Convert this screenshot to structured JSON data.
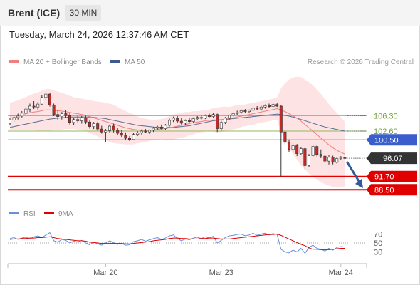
{
  "header": {
    "title": "Brent (ICE)",
    "timeframe": "30 MIN",
    "datetime": "Tuesday, March 24, 2026 12:37:46 AM CET"
  },
  "legend": {
    "bb_label": "MA 20 + Bollinger Bands",
    "ma50_label": "MA 50",
    "copyright": "Research © 2026 Trading Central",
    "rsi_label": "RSI",
    "ma9_label": "9MA"
  },
  "colors": {
    "bands": "#fde0e0",
    "ma20": "#f08080",
    "ma50": "#5a6e96",
    "candle_up": "#ffffff",
    "candle_down": "#c62828",
    "level_green": "#8fbc5a",
    "level_blue": "#3a5fcd",
    "level_red": "#e00000",
    "rsi": "#6a8fd8",
    "rsi_ma": "#e00000",
    "arrow": "#2f5b9a"
  },
  "chart_data": {
    "type": "candlestick",
    "x_ticks": [
      "Mar 20",
      "Mar 23",
      "Mar 24"
    ],
    "y_range": [
      86.5,
      117
    ],
    "levels": [
      {
        "value": 106.3,
        "label": "106.30",
        "kind": "resistance"
      },
      {
        "value": 102.6,
        "label": "102.60",
        "kind": "resistance"
      },
      {
        "value": 100.5,
        "label": "100.50",
        "kind": "pivot"
      },
      {
        "value": 91.7,
        "label": "91.70",
        "kind": "support"
      },
      {
        "value": 88.5,
        "label": "88.50",
        "kind": "support"
      }
    ],
    "last_price": {
      "value": 96.07,
      "label": "96.07"
    },
    "candles": [
      [
        104.5,
        105.8,
        104.0,
        105.3
      ],
      [
        105.3,
        106.3,
        104.8,
        105.9
      ],
      [
        105.9,
        106.8,
        105.4,
        106.2
      ],
      [
        106.2,
        107.4,
        105.9,
        106.9
      ],
      [
        106.9,
        108.3,
        106.6,
        107.9
      ],
      [
        107.9,
        109.2,
        107.2,
        108.6
      ],
      [
        108.6,
        109.8,
        107.9,
        108.4
      ],
      [
        108.4,
        109.6,
        107.7,
        109.1
      ],
      [
        109.1,
        111.2,
        108.8,
        110.7
      ],
      [
        110.7,
        111.9,
        110.1,
        111.5
      ],
      [
        111.5,
        111.8,
        108.5,
        108.9
      ],
      [
        108.9,
        109.2,
        106.2,
        106.6
      ],
      [
        106.6,
        107.6,
        105.2,
        106.1
      ],
      [
        106.1,
        107.2,
        105.4,
        106.8
      ],
      [
        106.8,
        107.6,
        105.9,
        106.3
      ],
      [
        106.3,
        106.9,
        104.2,
        104.7
      ],
      [
        104.7,
        105.8,
        104.1,
        105.4
      ],
      [
        105.4,
        106.3,
        104.7,
        105.1
      ],
      [
        105.1,
        106.2,
        104.4,
        105.8
      ],
      [
        105.8,
        106.3,
        104.3,
        104.8
      ],
      [
        104.8,
        105.4,
        103.2,
        103.7
      ],
      [
        103.7,
        104.8,
        103.1,
        104.4
      ],
      [
        104.4,
        104.9,
        102.7,
        103.1
      ],
      [
        103.1,
        103.9,
        102.0,
        102.4
      ],
      [
        102.4,
        103.1,
        99.9,
        102.7
      ],
      [
        102.7,
        104.2,
        102.2,
        103.8
      ],
      [
        103.8,
        104.4,
        102.3,
        102.8
      ],
      [
        102.8,
        103.3,
        101.6,
        102.1
      ],
      [
        102.1,
        102.8,
        101.2,
        101.6
      ],
      [
        101.6,
        102.3,
        100.4,
        100.9
      ],
      [
        100.9,
        101.4,
        100.2,
        100.6
      ],
      [
        100.6,
        102.1,
        100.4,
        101.8
      ],
      [
        101.8,
        102.6,
        101.4,
        102.2
      ],
      [
        102.2,
        103.0,
        101.8,
        102.6
      ],
      [
        102.6,
        103.1,
        102.1,
        102.4
      ],
      [
        102.4,
        103.0,
        101.9,
        102.8
      ],
      [
        102.8,
        103.6,
        102.4,
        103.3
      ],
      [
        103.3,
        103.9,
        102.9,
        103.6
      ],
      [
        103.6,
        104.2,
        103.0,
        103.2
      ],
      [
        103.2,
        104.3,
        102.8,
        104.0
      ],
      [
        104.0,
        105.6,
        103.7,
        105.2
      ],
      [
        105.2,
        106.1,
        104.8,
        105.7
      ],
      [
        105.7,
        106.2,
        104.6,
        105.0
      ],
      [
        105.0,
        105.7,
        104.2,
        104.5
      ],
      [
        104.5,
        105.4,
        104.1,
        105.1
      ],
      [
        105.1,
        105.8,
        104.7,
        104.9
      ],
      [
        104.9,
        105.9,
        104.6,
        105.6
      ],
      [
        105.6,
        106.2,
        105.2,
        105.9
      ],
      [
        105.9,
        106.4,
        105.4,
        105.7
      ],
      [
        105.7,
        106.6,
        105.5,
        106.3
      ],
      [
        106.3,
        106.8,
        105.9,
        106.1
      ],
      [
        106.1,
        106.9,
        105.8,
        106.6
      ],
      [
        106.6,
        106.8,
        102.4,
        103.2
      ],
      [
        103.2,
        105.1,
        102.6,
        104.7
      ],
      [
        104.7,
        106.0,
        104.3,
        105.7
      ],
      [
        105.7,
        106.6,
        105.3,
        106.4
      ],
      [
        106.4,
        107.1,
        106.0,
        106.8
      ],
      [
        106.8,
        107.5,
        106.4,
        107.2
      ],
      [
        107.2,
        107.8,
        106.8,
        107.5
      ],
      [
        107.5,
        107.9,
        106.9,
        107.3
      ],
      [
        107.3,
        107.8,
        106.9,
        107.6
      ],
      [
        107.6,
        108.4,
        107.3,
        108.1
      ],
      [
        108.1,
        108.6,
        107.6,
        107.9
      ],
      [
        107.9,
        108.7,
        107.5,
        108.4
      ],
      [
        108.4,
        109.0,
        108.0,
        108.7
      ],
      [
        108.7,
        109.2,
        108.2,
        108.5
      ],
      [
        108.5,
        109.3,
        108.1,
        109.0
      ],
      [
        109.0,
        109.4,
        108.4,
        108.6
      ],
      [
        108.6,
        108.9,
        91.7,
        102.4
      ],
      [
        102.4,
        102.9,
        99.3,
        99.9
      ],
      [
        99.9,
        100.6,
        97.6,
        98.2
      ],
      [
        98.2,
        99.6,
        97.4,
        99.1
      ],
      [
        99.1,
        99.5,
        96.6,
        97.2
      ],
      [
        97.2,
        98.8,
        96.9,
        98.4
      ],
      [
        98.4,
        98.6,
        93.2,
        94.3
      ],
      [
        94.3,
        97.1,
        93.9,
        96.7
      ],
      [
        96.7,
        99.4,
        96.3,
        98.9
      ],
      [
        98.9,
        99.2,
        96.5,
        97.0
      ],
      [
        97.0,
        98.2,
        96.1,
        96.6
      ],
      [
        96.6,
        96.9,
        94.9,
        95.4
      ],
      [
        95.4,
        96.8,
        94.6,
        96.3
      ],
      [
        96.3,
        96.7,
        94.6,
        95.1
      ],
      [
        95.1,
        96.4,
        94.8,
        96.0
      ],
      [
        96.0,
        96.6,
        95.6,
        96.2
      ],
      [
        96.2,
        96.5,
        95.8,
        96.07
      ]
    ],
    "ma20": [
      106.2,
      106.3,
      106.4,
      106.6,
      106.8,
      107.0,
      107.2,
      107.3,
      107.5,
      107.7,
      107.7,
      107.6,
      107.5,
      107.4,
      107.3,
      107.1,
      106.9,
      106.8,
      106.6,
      106.4,
      106.1,
      105.8,
      105.5,
      105.2,
      104.9,
      104.6,
      104.3,
      104.0,
      103.7,
      103.4,
      103.2,
      103.0,
      102.9,
      102.8,
      102.8,
      102.8,
      102.9,
      103.0,
      103.1,
      103.2,
      103.4,
      103.6,
      103.8,
      104.0,
      104.2,
      104.4,
      104.6,
      104.8,
      104.9,
      105.1,
      105.2,
      105.3,
      105.3,
      105.4,
      105.5,
      105.6,
      105.8,
      106.0,
      106.2,
      106.4,
      106.6,
      106.8,
      107.0,
      107.2,
      107.4,
      107.6,
      107.8,
      108.0,
      107.7,
      107.3,
      106.8,
      106.3,
      105.7,
      105.0,
      104.2,
      103.4,
      102.6,
      101.8,
      100.9,
      100.1,
      99.3,
      98.6,
      98.0,
      97.5,
      97.1
    ],
    "ma50": [
      103.5,
      103.7,
      103.9,
      104.1,
      104.3,
      104.5,
      104.7,
      104.9,
      105.1,
      105.3,
      105.5,
      105.6,
      105.7,
      105.8,
      105.9,
      106.0,
      106.0,
      106.0,
      106.0,
      106.0,
      106.0,
      105.9,
      105.8,
      105.7,
      105.6,
      105.4,
      105.2,
      105.0,
      104.8,
      104.6,
      104.4,
      104.2,
      104.0,
      103.9,
      103.8,
      103.7,
      103.6,
      103.5,
      103.5,
      103.5,
      103.5,
      103.5,
      103.6,
      103.7,
      103.8,
      103.9,
      104.1,
      104.3,
      104.5,
      104.7,
      104.9,
      105.1,
      105.2,
      105.3,
      105.4,
      105.5,
      105.6,
      105.7,
      105.8,
      105.9,
      106.0,
      106.1,
      106.2,
      106.3,
      106.4,
      106.5,
      106.6,
      106.7,
      106.6,
      106.4,
      106.2,
      106.0,
      105.7,
      105.4,
      105.1,
      104.8,
      104.5,
      104.2,
      103.9,
      103.6,
      103.4,
      103.2,
      103.0,
      102.8,
      102.6
    ],
    "bb_std": [
      1.6,
      1.7,
      1.8,
      1.9,
      2.0,
      2.1,
      2.2,
      2.3,
      2.4,
      2.5,
      2.5,
      2.4,
      2.3,
      2.2,
      2.1,
      2.0,
      1.9,
      1.9,
      1.9,
      1.9,
      2.0,
      2.0,
      2.1,
      2.2,
      2.2,
      2.3,
      2.3,
      2.2,
      2.1,
      2.0,
      1.9,
      1.8,
      1.6,
      1.5,
      1.4,
      1.3,
      1.2,
      1.2,
      1.2,
      1.3,
      1.4,
      1.5,
      1.5,
      1.5,
      1.5,
      1.4,
      1.4,
      1.3,
      1.3,
      1.3,
      1.3,
      1.4,
      1.5,
      1.5,
      1.5,
      1.4,
      1.4,
      1.4,
      1.3,
      1.3,
      1.3,
      1.3,
      1.3,
      1.3,
      1.3,
      1.3,
      1.3,
      1.3,
      2.6,
      3.4,
      4.1,
      4.6,
      5.0,
      5.3,
      5.4,
      5.5,
      5.5,
      5.4,
      5.3,
      5.1,
      4.9,
      4.7,
      4.5,
      4.2,
      3.9
    ],
    "rsi": {
      "ticks": [
        30,
        50,
        70
      ],
      "range": [
        10,
        90
      ],
      "values": [
        60,
        62,
        58,
        61,
        63,
        59,
        64,
        66,
        62,
        68,
        73,
        55,
        52,
        58,
        56,
        50,
        54,
        52,
        56,
        50,
        46,
        52,
        48,
        45,
        50,
        55,
        51,
        47,
        49,
        45,
        46,
        53,
        55,
        58,
        54,
        57,
        60,
        62,
        58,
        61,
        66,
        68,
        60,
        55,
        59,
        57,
        61,
        63,
        60,
        64,
        61,
        65,
        50,
        56,
        62,
        66,
        67,
        69,
        70,
        66,
        68,
        72,
        67,
        70,
        72,
        68,
        71,
        69,
        36,
        30,
        28,
        34,
        30,
        38,
        27,
        40,
        45,
        38,
        36,
        32,
        38,
        34,
        40,
        42,
        41
      ],
      "ma9": [
        58,
        59,
        59,
        60,
        60,
        61,
        61,
        62,
        62,
        63,
        64,
        62,
        60,
        59,
        58,
        57,
        56,
        55,
        55,
        54,
        52,
        51,
        50,
        49,
        49,
        49,
        49,
        49,
        49,
        48,
        48,
        49,
        50,
        51,
        52,
        53,
        55,
        56,
        57,
        58,
        60,
        61,
        61,
        60,
        60,
        59,
        59,
        59,
        60,
        60,
        61,
        61,
        60,
        59,
        59,
        59,
        60,
        61,
        62,
        63,
        64,
        65,
        66,
        67,
        68,
        69,
        69,
        70,
        67,
        63,
        59,
        55,
        51,
        47,
        44,
        39,
        36,
        36,
        35,
        35,
        35,
        36,
        37,
        38,
        38
      ]
    }
  }
}
